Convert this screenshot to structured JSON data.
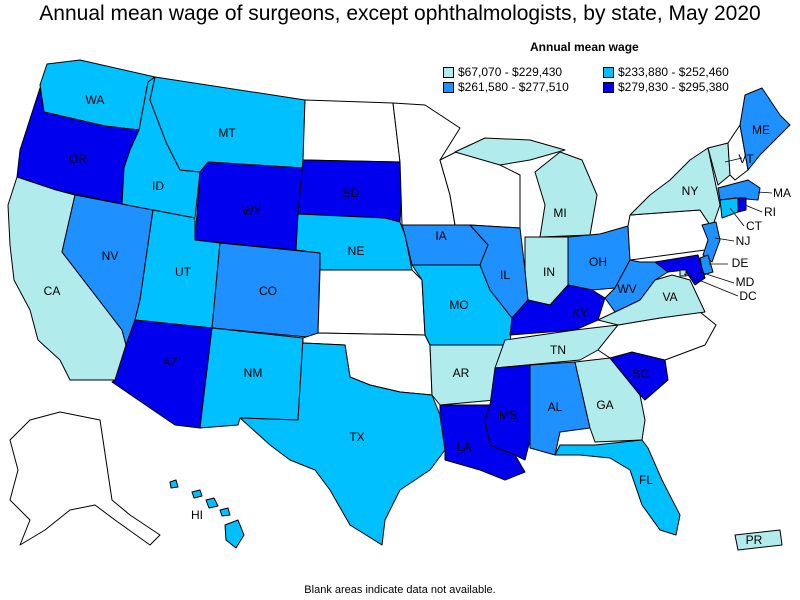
{
  "title": "Annual mean wage of surgeons, except ophthalmologists, by state, May 2020",
  "legend": {
    "title": "Annual mean wage",
    "items": [
      {
        "label": "$67,070 - $229,430",
        "color": "#b2ebeb"
      },
      {
        "label": "$233,880 - $252,460",
        "color": "#00c0ff"
      },
      {
        "label": "$261,580 - $277,510",
        "color": "#1e90ff"
      },
      {
        "label": "$279,830 - $295,380",
        "color": "#0000ee"
      }
    ]
  },
  "footnote": "Blank areas indicate data not available.",
  "states": {
    "WA": {
      "label": "WA",
      "tier": 1
    },
    "OR": {
      "label": "OR",
      "tier": 3
    },
    "CA": {
      "label": "CA",
      "tier": 0
    },
    "NV": {
      "label": "NV",
      "tier": 2
    },
    "ID": {
      "label": "ID",
      "tier": 1
    },
    "MT": {
      "label": "MT",
      "tier": 1
    },
    "WY": {
      "label": "WY",
      "tier": 3
    },
    "UT": {
      "label": "UT",
      "tier": 1
    },
    "AZ": {
      "label": "AZ",
      "tier": 3
    },
    "CO": {
      "label": "CO",
      "tier": 2
    },
    "NM": {
      "label": "NM",
      "tier": 1
    },
    "ND": {
      "label": "",
      "tier": null
    },
    "SD": {
      "label": "SD",
      "tier": 3
    },
    "NE": {
      "label": "NE",
      "tier": 1
    },
    "KS": {
      "label": "",
      "tier": null
    },
    "OK": {
      "label": "",
      "tier": null
    },
    "TX": {
      "label": "TX",
      "tier": 1
    },
    "MN": {
      "label": "",
      "tier": null
    },
    "IA": {
      "label": "IA",
      "tier": 2
    },
    "MO": {
      "label": "MO",
      "tier": 1
    },
    "AR": {
      "label": "AR",
      "tier": 0
    },
    "LA": {
      "label": "LA",
      "tier": 3
    },
    "WI": {
      "label": "",
      "tier": null
    },
    "IL": {
      "label": "IL",
      "tier": 2
    },
    "MI": {
      "label": "MI",
      "tier": 0
    },
    "IN": {
      "label": "IN",
      "tier": 0
    },
    "OH": {
      "label": "OH",
      "tier": 2
    },
    "KY": {
      "label": "KY",
      "tier": 3
    },
    "TN": {
      "label": "TN",
      "tier": 0
    },
    "MS": {
      "label": "MS",
      "tier": 3
    },
    "AL": {
      "label": "AL",
      "tier": 2
    },
    "GA": {
      "label": "GA",
      "tier": 0
    },
    "FL": {
      "label": "FL",
      "tier": 1
    },
    "SC": {
      "label": "SC",
      "tier": 3
    },
    "NC": {
      "label": "",
      "tier": null
    },
    "VA": {
      "label": "VA",
      "tier": 0
    },
    "WV": {
      "label": "WV",
      "tier": 2
    },
    "PA": {
      "label": "",
      "tier": null
    },
    "NY": {
      "label": "NY",
      "tier": 0
    },
    "VT": {
      "label": "VT",
      "tier": 0
    },
    "NH": {
      "label": "",
      "tier": null
    },
    "ME": {
      "label": "ME",
      "tier": 2
    },
    "MA": {
      "label": "MA",
      "tier": 2
    },
    "RI": {
      "label": "RI",
      "tier": 3
    },
    "CT": {
      "label": "CT",
      "tier": 1
    },
    "NJ": {
      "label": "NJ",
      "tier": 2
    },
    "DE": {
      "label": "DE",
      "tier": 2
    },
    "MD": {
      "label": "MD",
      "tier": 3
    },
    "DC": {
      "label": "DC",
      "tier": 0
    },
    "AK": {
      "label": "",
      "tier": null
    },
    "HI": {
      "label": "HI",
      "tier": 1
    },
    "PR": {
      "label": "PR",
      "tier": 0
    }
  }
}
